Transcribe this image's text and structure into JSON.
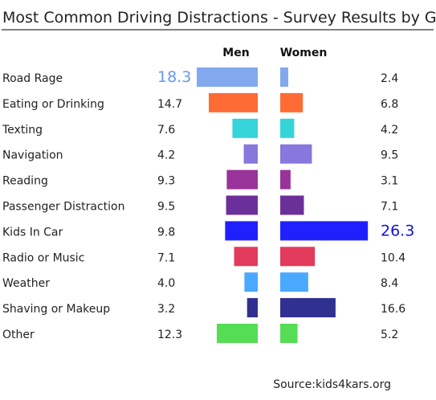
{
  "chart_data": {
    "type": "bar",
    "title": "Most Common Driving Distractions - Survey Results by Gender",
    "source": "Source:kids4kars.org",
    "categories": [
      "Road Rage",
      "Eating or Drinking",
      "Texting",
      "Navigation",
      "Reading",
      "Passenger Distraction",
      "Kids In Car",
      "Radio or Music",
      "Weather",
      "Shaving or Makeup",
      "Other"
    ],
    "series": [
      {
        "name": "Men",
        "values": [
          18.3,
          14.7,
          7.6,
          4.2,
          9.3,
          9.5,
          9.8,
          7.1,
          4.0,
          3.2,
          12.3
        ]
      },
      {
        "name": "Women",
        "values": [
          2.4,
          6.8,
          4.2,
          9.5,
          3.1,
          7.1,
          26.3,
          10.4,
          8.4,
          16.6,
          5.2
        ]
      }
    ],
    "value_labels": {
      "men": [
        "18.3",
        "14.7",
        "7.6",
        "4.2",
        "9.3",
        "9.5",
        "9.8",
        "7.1",
        "4.0",
        "3.2",
        "12.3"
      ],
      "women": [
        "2.4",
        "6.8",
        "4.2",
        "9.5",
        "3.1",
        "7.1",
        "26.3",
        "10.4",
        "8.4",
        "16.6",
        "5.2"
      ]
    },
    "colors": [
      "#82a8ee",
      "#ff6b35",
      "#35d4d8",
      "#8877dd",
      "#993399",
      "#6b2f99",
      "#2020ff",
      "#e23b5c",
      "#4aa8ff",
      "#303090",
      "#55dd55"
    ],
    "highlight_max_color": {
      "men": "#6699ee",
      "women": "#1010dd"
    },
    "grid": false,
    "legend": "top-center"
  }
}
